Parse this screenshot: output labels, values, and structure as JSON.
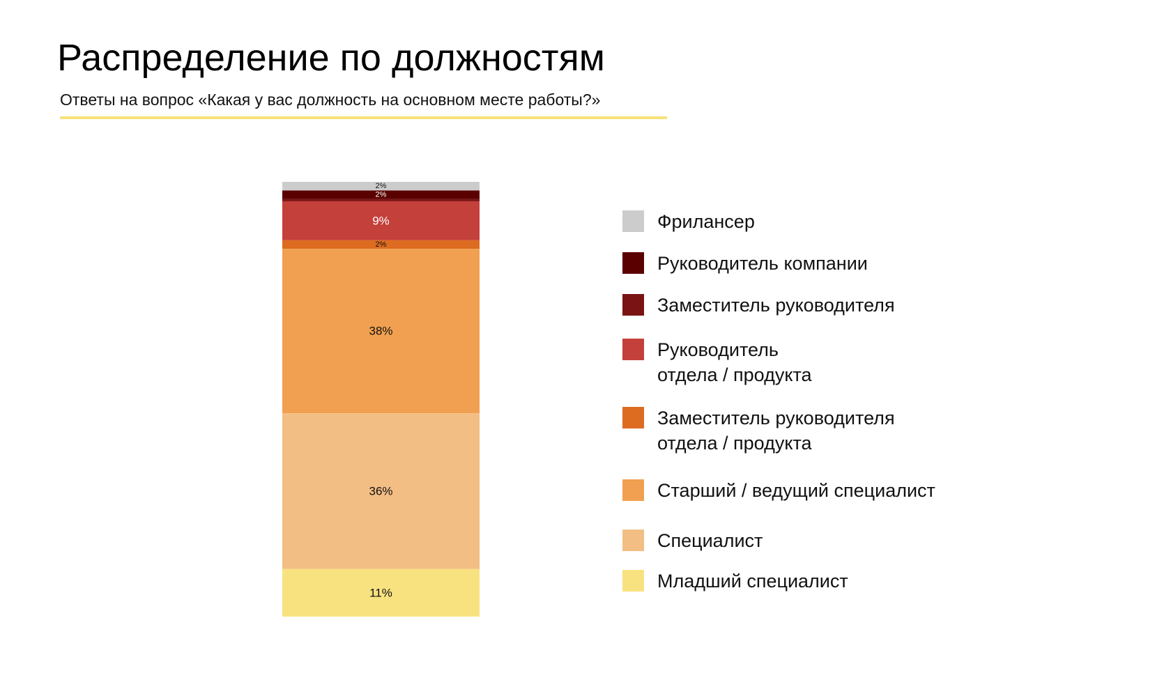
{
  "chart_data": {
    "type": "stacked_bar",
    "title": "Распределение по должностям",
    "subtitle": "Ответы на вопрос «Какая у вас должность на основном месте работы?»",
    "series": [
      {
        "name": "Фрилансер",
        "color": "#cccccc",
        "values": [
          2
        ],
        "value_labels": [
          "2%"
        ]
      },
      {
        "name": "Руководитель компании",
        "color": "#5a0000",
        "values": [
          2
        ],
        "value_labels": [
          "2%"
        ]
      },
      {
        "name": "Заместитель руководителя",
        "color": "#7a1414",
        "values": [
          0.5
        ],
        "value_labels": [
          null
        ]
      },
      {
        "name": "Руководитель\nотдела / продукта",
        "color": "#c4403a",
        "values": [
          9
        ],
        "value_labels": [
          "9%"
        ]
      },
      {
        "name": "Заместитель руководителя\nотдела / продукта",
        "color": "#dd6b20",
        "values": [
          2
        ],
        "value_labels": [
          "2%"
        ]
      },
      {
        "name": "Старший / ведущий специалист",
        "color": "#f0a050",
        "values": [
          38
        ],
        "value_labels": [
          "38%"
        ]
      },
      {
        "name": "Специалист",
        "color": "#f3be84",
        "values": [
          36
        ],
        "value_labels": [
          "36%"
        ]
      },
      {
        "name": "Младший специалист",
        "color": "#f8e280",
        "values": [
          11
        ],
        "value_labels": [
          "11%"
        ]
      }
    ]
  }
}
